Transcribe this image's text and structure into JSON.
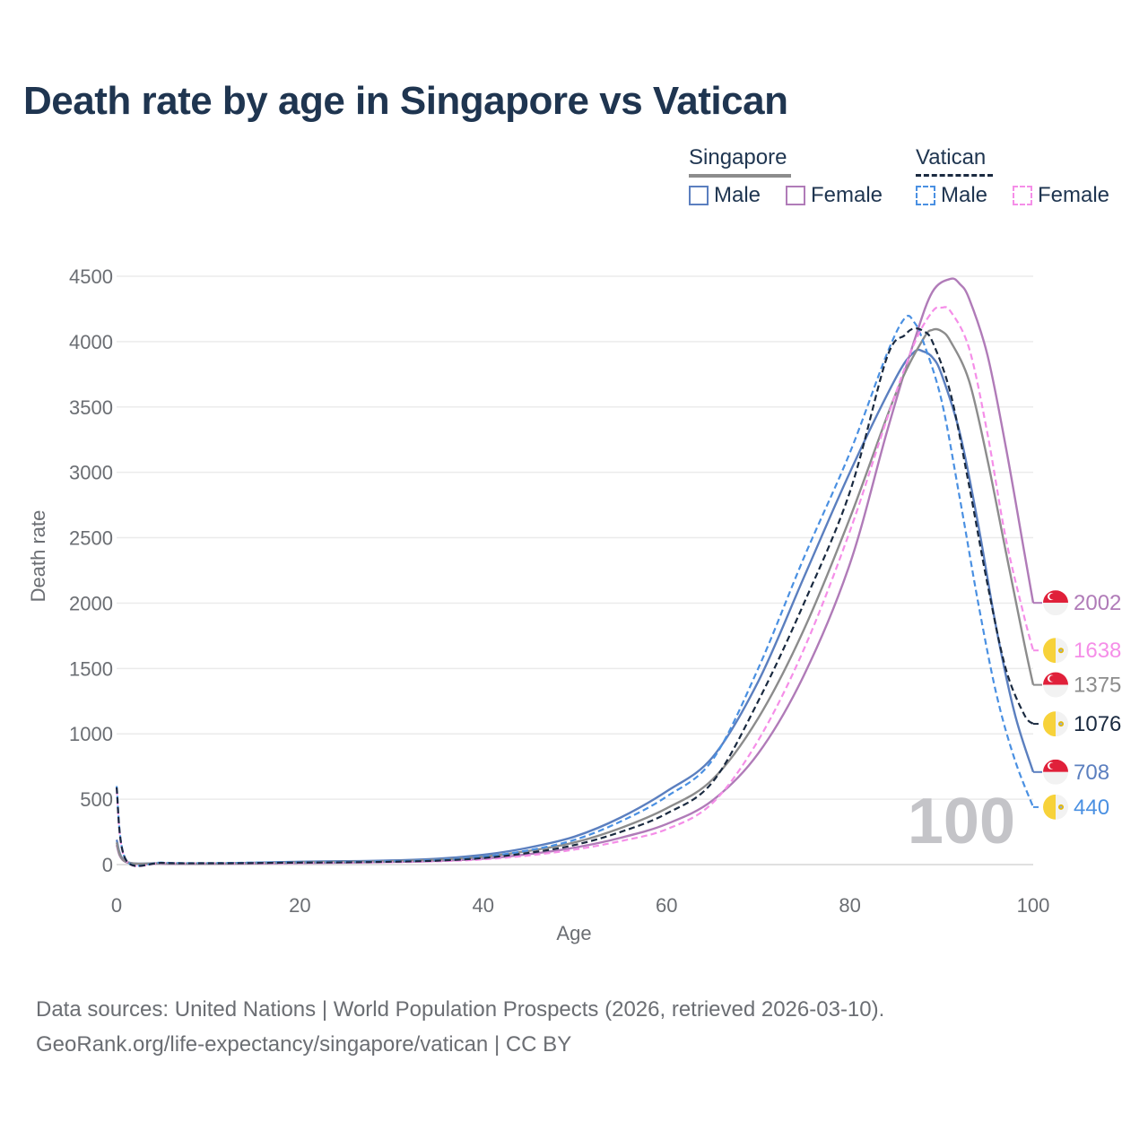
{
  "title": "Death rate by age in Singapore vs Vatican",
  "legend": {
    "groups": [
      {
        "name": "Singapore",
        "items": [
          {
            "label": "Male",
            "color": "#5b7fbf",
            "style": "solid"
          },
          {
            "label": "Female",
            "color": "#b07bb8",
            "style": "solid"
          }
        ]
      },
      {
        "name": "Vatican",
        "items": [
          {
            "label": "Male",
            "color": "#4a90e2",
            "style": "dashed"
          },
          {
            "label": "Female",
            "color": "#f58ee8",
            "style": "dashed"
          }
        ]
      }
    ]
  },
  "watermark": "100",
  "source": {
    "line1": "Data sources: United Nations | World Population Prospects (2026, retrieved 2026-03-10).",
    "line2": "GeoRank.org/life-expectancy/singapore/vatican | CC BY"
  },
  "chart_data": {
    "type": "line",
    "title": "Death rate by age in Singapore vs Vatican",
    "xlabel": "Age",
    "ylabel": "Death rate",
    "xlim": [
      0,
      100
    ],
    "ylim": [
      0,
      4500
    ],
    "xticks": [
      0,
      20,
      40,
      60,
      80,
      100
    ],
    "yticks": [
      0,
      500,
      1000,
      1500,
      2000,
      2500,
      3000,
      3500,
      4000,
      4500
    ],
    "grid": true,
    "series": [
      {
        "name": "Singapore Male",
        "country": "Singapore",
        "color": "#5b7fbf",
        "dash": false,
        "end_label": "708",
        "points": [
          [
            0,
            190
          ],
          [
            1,
            25
          ],
          [
            5,
            10
          ],
          [
            10,
            8
          ],
          [
            15,
            14
          ],
          [
            20,
            22
          ],
          [
            25,
            26
          ],
          [
            30,
            32
          ],
          [
            35,
            45
          ],
          [
            40,
            75
          ],
          [
            45,
            130
          ],
          [
            50,
            215
          ],
          [
            55,
            360
          ],
          [
            60,
            560
          ],
          [
            65,
            820
          ],
          [
            70,
            1400
          ],
          [
            75,
            2200
          ],
          [
            80,
            3000
          ],
          [
            85,
            3720
          ],
          [
            87,
            3920
          ],
          [
            88,
            3925
          ],
          [
            89,
            3880
          ],
          [
            90,
            3750
          ],
          [
            92,
            3300
          ],
          [
            94,
            2600
          ],
          [
            96,
            1800
          ],
          [
            98,
            1150
          ],
          [
            100,
            708
          ]
        ]
      },
      {
        "name": "Singapore Female",
        "country": "Singapore",
        "color": "#b07bb8",
        "dash": false,
        "end_label": "2002",
        "points": [
          [
            0,
            150
          ],
          [
            1,
            20
          ],
          [
            5,
            7
          ],
          [
            10,
            6
          ],
          [
            15,
            8
          ],
          [
            20,
            12
          ],
          [
            25,
            15
          ],
          [
            30,
            20
          ],
          [
            35,
            28
          ],
          [
            40,
            45
          ],
          [
            45,
            80
          ],
          [
            50,
            130
          ],
          [
            55,
            205
          ],
          [
            60,
            310
          ],
          [
            65,
            490
          ],
          [
            70,
            850
          ],
          [
            75,
            1450
          ],
          [
            80,
            2300
          ],
          [
            84,
            3300
          ],
          [
            87,
            4000
          ],
          [
            89,
            4380
          ],
          [
            91,
            4480
          ],
          [
            92,
            4440
          ],
          [
            93,
            4330
          ],
          [
            95,
            3900
          ],
          [
            97,
            3200
          ],
          [
            99,
            2400
          ],
          [
            100,
            2002
          ]
        ]
      },
      {
        "name": "Singapore Total",
        "country": "Singapore",
        "color": "#8c8c8c",
        "dash": false,
        "end_label": "1375",
        "points": [
          [
            0,
            170
          ],
          [
            1,
            22
          ],
          [
            5,
            9
          ],
          [
            10,
            7
          ],
          [
            15,
            11
          ],
          [
            20,
            17
          ],
          [
            25,
            21
          ],
          [
            30,
            26
          ],
          [
            35,
            37
          ],
          [
            40,
            60
          ],
          [
            45,
            105
          ],
          [
            50,
            170
          ],
          [
            55,
            280
          ],
          [
            60,
            430
          ],
          [
            65,
            650
          ],
          [
            70,
            1120
          ],
          [
            75,
            1800
          ],
          [
            80,
            2650
          ],
          [
            85,
            3600
          ],
          [
            88,
            4020
          ],
          [
            89,
            4090
          ],
          [
            90,
            4080
          ],
          [
            91,
            4000
          ],
          [
            93,
            3700
          ],
          [
            95,
            3100
          ],
          [
            97,
            2400
          ],
          [
            99,
            1700
          ],
          [
            100,
            1375
          ]
        ]
      },
      {
        "name": "Vatican Male",
        "country": "Vatican",
        "color": "#4a90e2",
        "dash": true,
        "end_label": "440",
        "points": [
          [
            0,
            600
          ],
          [
            1,
            40
          ],
          [
            5,
            15
          ],
          [
            10,
            12
          ],
          [
            15,
            15
          ],
          [
            20,
            18
          ],
          [
            25,
            20
          ],
          [
            30,
            26
          ],
          [
            35,
            36
          ],
          [
            40,
            60
          ],
          [
            45,
            110
          ],
          [
            50,
            190
          ],
          [
            55,
            330
          ],
          [
            60,
            520
          ],
          [
            65,
            800
          ],
          [
            70,
            1500
          ],
          [
            75,
            2350
          ],
          [
            80,
            3150
          ],
          [
            84,
            3900
          ],
          [
            86,
            4180
          ],
          [
            87,
            4150
          ],
          [
            88,
            4000
          ],
          [
            90,
            3550
          ],
          [
            92,
            2800
          ],
          [
            94,
            2000
          ],
          [
            96,
            1300
          ],
          [
            98,
            800
          ],
          [
            100,
            440
          ]
        ]
      },
      {
        "name": "Vatican Female",
        "country": "Vatican",
        "color": "#f58ee8",
        "dash": true,
        "end_label": "1638",
        "points": [
          [
            0,
            580
          ],
          [
            1,
            35
          ],
          [
            5,
            12
          ],
          [
            10,
            9
          ],
          [
            15,
            10
          ],
          [
            20,
            12
          ],
          [
            25,
            14
          ],
          [
            30,
            18
          ],
          [
            35,
            25
          ],
          [
            40,
            40
          ],
          [
            45,
            70
          ],
          [
            50,
            115
          ],
          [
            55,
            180
          ],
          [
            60,
            270
          ],
          [
            65,
            470
          ],
          [
            70,
            950
          ],
          [
            75,
            1650
          ],
          [
            80,
            2550
          ],
          [
            84,
            3400
          ],
          [
            87,
            3980
          ],
          [
            89,
            4230
          ],
          [
            90,
            4260
          ],
          [
            91,
            4230
          ],
          [
            93,
            3950
          ],
          [
            95,
            3300
          ],
          [
            97,
            2500
          ],
          [
            99,
            1900
          ],
          [
            100,
            1638
          ]
        ]
      },
      {
        "name": "Vatican Total",
        "country": "Vatican",
        "color": "#1a2a40",
        "dash": true,
        "end_label": "1076",
        "points": [
          [
            0,
            590
          ],
          [
            1,
            38
          ],
          [
            5,
            13
          ],
          [
            10,
            10
          ],
          [
            15,
            12
          ],
          [
            20,
            15
          ],
          [
            25,
            17
          ],
          [
            30,
            22
          ],
          [
            35,
            30
          ],
          [
            40,
            50
          ],
          [
            45,
            90
          ],
          [
            50,
            150
          ],
          [
            55,
            250
          ],
          [
            60,
            390
          ],
          [
            65,
            630
          ],
          [
            70,
            1250
          ],
          [
            75,
            2000
          ],
          [
            80,
            2850
          ],
          [
            84,
            3870
          ],
          [
            86,
            4050
          ],
          [
            87,
            4100
          ],
          [
            88,
            4080
          ],
          [
            89,
            4000
          ],
          [
            91,
            3600
          ],
          [
            93,
            2900
          ],
          [
            95,
            2150
          ],
          [
            97,
            1500
          ],
          [
            99,
            1150
          ],
          [
            100,
            1076
          ]
        ]
      }
    ]
  }
}
